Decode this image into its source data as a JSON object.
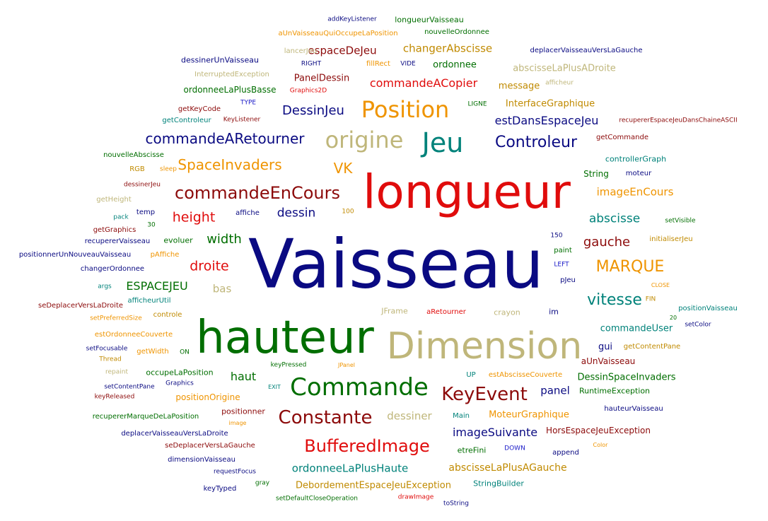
{
  "palette": {
    "navy": "#0a0a82",
    "red": "#e00c0c",
    "darkred": "#8c0a0a",
    "green": "#006e00",
    "teal": "#00827a",
    "orange": "#ef9400",
    "gold": "#c08a00",
    "tan": "#bfb67a",
    "blue": "#1a1ac8"
  },
  "words": [
    {
      "text": "Vaisseau",
      "color": "navy"
    },
    {
      "text": "longueur",
      "color": "red"
    },
    {
      "text": "hauteur",
      "color": "green"
    },
    {
      "text": "Dimension",
      "color": "tan"
    },
    {
      "text": "Jeu",
      "color": "teal"
    },
    {
      "text": "origine",
      "color": "tan"
    },
    {
      "text": "Position",
      "color": "orange"
    },
    {
      "text": "Commande",
      "color": "green"
    },
    {
      "text": "KeyEvent",
      "color": "darkred"
    },
    {
      "text": "Constante",
      "color": "darkred"
    },
    {
      "text": "BufferedImage",
      "color": "red"
    },
    {
      "text": "commandeEnCours",
      "color": "darkred"
    },
    {
      "text": "commandeARetourner",
      "color": "navy"
    },
    {
      "text": "Controleur",
      "color": "navy"
    },
    {
      "text": "MARQUE",
      "color": "orange"
    },
    {
      "text": "vitesse",
      "color": "teal"
    },
    {
      "text": "SpaceInvaders",
      "color": "orange"
    },
    {
      "text": "VK",
      "color": "orange"
    },
    {
      "text": "DessinJeu",
      "color": "navy"
    },
    {
      "text": "estDansEspaceJeu",
      "color": "navy"
    },
    {
      "text": "commandeACopier",
      "color": "red"
    },
    {
      "text": "changerAbscisse",
      "color": "gold"
    },
    {
      "text": "espaceDeJeu",
      "color": "darkred"
    },
    {
      "text": "height",
      "color": "red"
    },
    {
      "text": "width",
      "color": "green"
    },
    {
      "text": "droite",
      "color": "red"
    },
    {
      "text": "dessin",
      "color": "navy"
    },
    {
      "text": "abscisse",
      "color": "teal"
    },
    {
      "text": "gauche",
      "color": "darkred"
    },
    {
      "text": "imageEnCours",
      "color": "orange"
    },
    {
      "text": "ESPACEJEU",
      "color": "green"
    },
    {
      "text": "bas",
      "color": "tan"
    },
    {
      "text": "haut",
      "color": "green"
    },
    {
      "text": "panel",
      "color": "navy"
    },
    {
      "text": "dessiner",
      "color": "tan"
    },
    {
      "text": "imageSuivante",
      "color": "navy"
    },
    {
      "text": "ordonneeLaPlusHaute",
      "color": "teal"
    },
    {
      "text": "abscisseLaPlusAGauche",
      "color": "gold"
    },
    {
      "text": "DebordementEspaceJeuException",
      "color": "gold"
    },
    {
      "text": "MoteurGraphique",
      "color": "orange"
    },
    {
      "text": "HorsEspaceJeuException",
      "color": "darkred"
    },
    {
      "text": "commandeUser",
      "color": "teal"
    },
    {
      "text": "DessinSpaceInvaders",
      "color": "green"
    },
    {
      "text": "abscisseLaPlusADroite",
      "color": "tan"
    },
    {
      "text": "InterfaceGraphique",
      "color": "gold"
    },
    {
      "text": "message",
      "color": "gold"
    },
    {
      "text": "PanelDessin",
      "color": "darkred"
    },
    {
      "text": "ordonnee",
      "color": "green"
    },
    {
      "text": "ordonneeLaPlusBasse",
      "color": "green"
    },
    {
      "text": "dessinerUnVaisseau",
      "color": "navy"
    },
    {
      "text": "longueurVaisseau",
      "color": "green"
    },
    {
      "text": "aUnVaisseauQuiOccupeLaPosition",
      "color": "orange"
    },
    {
      "text": "nouvelleOrdonnee",
      "color": "green"
    },
    {
      "text": "deplacerVaisseauVersLaGauche",
      "color": "navy"
    },
    {
      "text": "addKeyListener",
      "color": "navy"
    },
    {
      "text": "lancerJeu",
      "color": "tan"
    },
    {
      "text": "RIGHT",
      "color": "navy"
    },
    {
      "text": "fillRect",
      "color": "orange"
    },
    {
      "text": "VIDE",
      "color": "navy"
    },
    {
      "text": "InterruptedException",
      "color": "tan"
    },
    {
      "text": "Graphics2D",
      "color": "red"
    },
    {
      "text": "afficheur",
      "color": "tan"
    },
    {
      "text": "getKeyCode",
      "color": "darkred"
    },
    {
      "text": "TYPE",
      "color": "blue"
    },
    {
      "text": "LIGNE",
      "color": "green"
    },
    {
      "text": "recupererEspaceJeuDansChaineASCII",
      "color": "darkred"
    },
    {
      "text": "getControleur",
      "color": "teal"
    },
    {
      "text": "KeyListener",
      "color": "darkred"
    },
    {
      "text": "getCommande",
      "color": "darkred"
    },
    {
      "text": "nouvelleAbscisse",
      "color": "green"
    },
    {
      "text": "RGB",
      "color": "gold"
    },
    {
      "text": "sleep",
      "color": "orange"
    },
    {
      "text": "controllerGraph",
      "color": "teal"
    },
    {
      "text": "String",
      "color": "green"
    },
    {
      "text": "moteur",
      "color": "navy"
    },
    {
      "text": "dessinerJeu",
      "color": "darkred"
    },
    {
      "text": "getHeight",
      "color": "tan"
    },
    {
      "text": "pack",
      "color": "teal"
    },
    {
      "text": "temp",
      "color": "navy"
    },
    {
      "text": "30",
      "color": "green"
    },
    {
      "text": "affiche",
      "color": "navy"
    },
    {
      "text": "100",
      "color": "gold"
    },
    {
      "text": "getGraphics",
      "color": "darkred"
    },
    {
      "text": "setVisible",
      "color": "green"
    },
    {
      "text": "recupererVaisseau",
      "color": "navy"
    },
    {
      "text": "evoluer",
      "color": "green"
    },
    {
      "text": "150",
      "color": "navy"
    },
    {
      "text": "initialiserJeu",
      "color": "gold"
    },
    {
      "text": "positionnerUnNouveauVaisseau",
      "color": "navy"
    },
    {
      "text": "pAffiche",
      "color": "orange"
    },
    {
      "text": "paint",
      "color": "green"
    },
    {
      "text": "changerOrdonnee",
      "color": "navy"
    },
    {
      "text": "LEFT",
      "color": "blue"
    },
    {
      "text": "args",
      "color": "teal"
    },
    {
      "text": "pJeu",
      "color": "navy"
    },
    {
      "text": "CLOSE",
      "color": "orange"
    },
    {
      "text": "afficheurUtil",
      "color": "teal"
    },
    {
      "text": "FIN",
      "color": "gold"
    },
    {
      "text": "seDeplacerVersLaDroite",
      "color": "darkred"
    },
    {
      "text": "JFrame",
      "color": "tan"
    },
    {
      "text": "aRetourner",
      "color": "red"
    },
    {
      "text": "crayon",
      "color": "tan"
    },
    {
      "text": "im",
      "color": "navy"
    },
    {
      "text": "positionVaisseau",
      "color": "teal"
    },
    {
      "text": "controle",
      "color": "gold"
    },
    {
      "text": "setPreferredSize",
      "color": "orange"
    },
    {
      "text": "setColor",
      "color": "navy"
    },
    {
      "text": "estOrdonneeCouverte",
      "color": "orange"
    },
    {
      "text": "20",
      "color": "green"
    },
    {
      "text": "setFocusable",
      "color": "navy"
    },
    {
      "text": "getWidth",
      "color": "orange"
    },
    {
      "text": "ON",
      "color": "green"
    },
    {
      "text": "gui",
      "color": "navy"
    },
    {
      "text": "getContentPane",
      "color": "gold"
    },
    {
      "text": "Thread",
      "color": "gold"
    },
    {
      "text": "aUnVaisseau",
      "color": "darkred"
    },
    {
      "text": "repaint",
      "color": "tan"
    },
    {
      "text": "occupeLaPosition",
      "color": "green"
    },
    {
      "text": "keyPressed",
      "color": "green"
    },
    {
      "text": "JPanel",
      "color": "orange"
    },
    {
      "text": "UP",
      "color": "teal"
    },
    {
      "text": "estAbscisseCouverte",
      "color": "orange"
    },
    {
      "text": "setContentPane",
      "color": "navy"
    },
    {
      "text": "Graphics",
      "color": "navy"
    },
    {
      "text": "EXIT",
      "color": "teal"
    },
    {
      "text": "positionOrigine",
      "color": "orange"
    },
    {
      "text": "RuntimeException",
      "color": "green"
    },
    {
      "text": "keyReleased",
      "color": "darkred"
    },
    {
      "text": "Main",
      "color": "teal"
    },
    {
      "text": "hauteurVaisseau",
      "color": "navy"
    },
    {
      "text": "recupererMarqueDeLaPosition",
      "color": "green"
    },
    {
      "text": "positionner",
      "color": "darkred"
    },
    {
      "text": "image",
      "color": "orange"
    },
    {
      "text": "deplacerVaisseauVersLaDroite",
      "color": "navy"
    },
    {
      "text": "seDeplacerVersLaGauche",
      "color": "darkred"
    },
    {
      "text": "etreFini",
      "color": "green"
    },
    {
      "text": "DOWN",
      "color": "blue"
    },
    {
      "text": "append",
      "color": "navy"
    },
    {
      "text": "Color",
      "color": "orange"
    },
    {
      "text": "dimensionVaisseau",
      "color": "navy"
    },
    {
      "text": "requestFocus",
      "color": "navy"
    },
    {
      "text": "gray",
      "color": "green"
    },
    {
      "text": "StringBuilder",
      "color": "teal"
    },
    {
      "text": "keyTyped",
      "color": "navy"
    },
    {
      "text": "setDefaultCloseOperation",
      "color": "green"
    },
    {
      "text": "drawImage",
      "color": "red"
    },
    {
      "text": "toString",
      "color": "navy"
    }
  ]
}
